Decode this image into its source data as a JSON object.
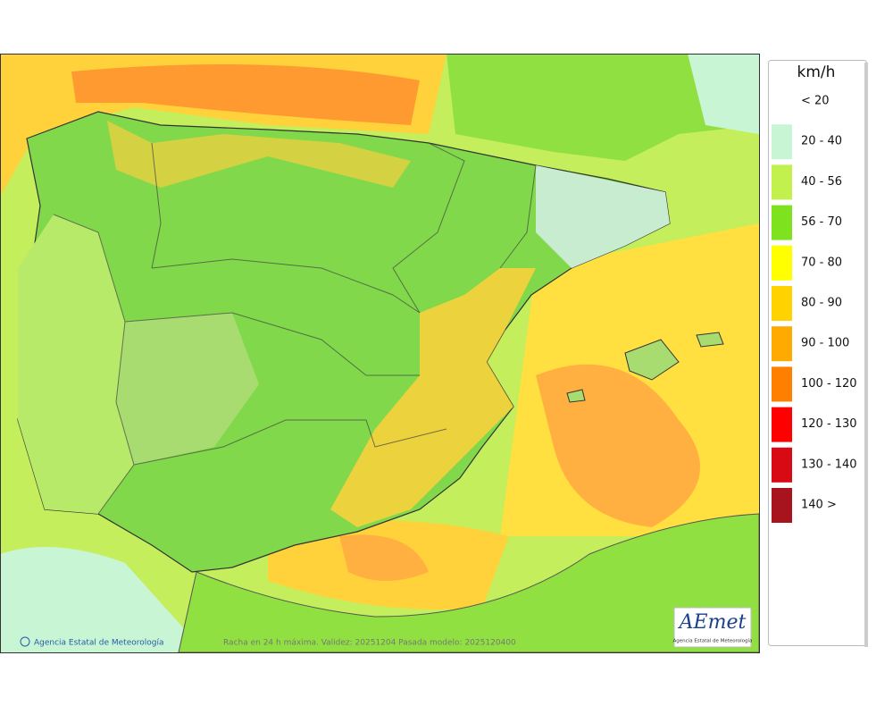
{
  "legend": {
    "unit": "km/h",
    "items": [
      {
        "label": "< 20",
        "color": "#ffffff"
      },
      {
        "label": "20 - 40",
        "color": "#c8f5d4"
      },
      {
        "label": "40 - 56",
        "color": "#c2f04c"
      },
      {
        "label": "56 - 70",
        "color": "#7fe21e"
      },
      {
        "label": "70 - 80",
        "color": "#ffff00"
      },
      {
        "label": "80 - 90",
        "color": "#ffd200"
      },
      {
        "label": "90 - 100",
        "color": "#ffaa00"
      },
      {
        "label": "100 - 120",
        "color": "#ff8000"
      },
      {
        "label": "120 - 130",
        "color": "#ff0000"
      },
      {
        "label": "130 - 140",
        "color": "#d80a14"
      },
      {
        "label": "140 >",
        "color": "#a8141e"
      }
    ]
  },
  "footer": {
    "credit": "Agencia Estatal de Meteorología",
    "caption": "Racha en 24 h máxima. Validez: 20251204 Pasada modelo: 2025120400"
  },
  "logo": {
    "text": "AEmet",
    "subtitle": "Agencia Estatal de Meteorología"
  }
}
